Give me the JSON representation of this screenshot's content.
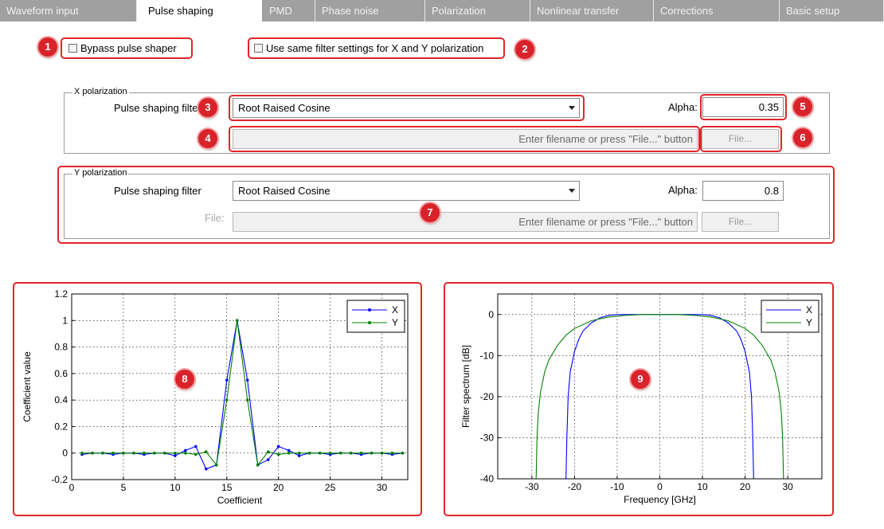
{
  "tabs": [
    {
      "label": "Waveform input",
      "active": false
    },
    {
      "label": "Pulse shaping",
      "active": true
    },
    {
      "label": "PMD",
      "active": false
    },
    {
      "label": "Phase noise",
      "active": false
    },
    {
      "label": "Polarization",
      "active": false
    },
    {
      "label": "Nonlinear transfer",
      "active": false
    },
    {
      "label": "Corrections",
      "active": false
    },
    {
      "label": "Basic setup",
      "active": false
    }
  ],
  "options": {
    "bypass_label": "Bypass pulse shaper",
    "bypass_checked": false,
    "same_filter_label": "Use same filter settings for X and Y polarization",
    "same_filter_checked": false
  },
  "x_pol": {
    "title": "X polarization",
    "filter_label": "Pulse shaping filter",
    "filter_value": "Root Raised Cosine",
    "alpha_label": "Alpha:",
    "alpha_value": "0.35",
    "file_placeholder": "Enter filename or press \"File...\" button",
    "file_button": "File..."
  },
  "y_pol": {
    "title": "Y polarization",
    "filter_label": "Pulse shaping filter",
    "filter_value": "Root Raised Cosine",
    "alpha_label": "Alpha:",
    "alpha_value": "0.8",
    "file_label": "File:",
    "file_placeholder": "Enter filename or press \"File...\" button",
    "file_button": "File..."
  },
  "callouts": [
    "1",
    "2",
    "3",
    "4",
    "5",
    "6",
    "7",
    "8",
    "9"
  ],
  "colors": {
    "accent": "#d8232a",
    "series_x": "#0000ff",
    "series_y": "#008000",
    "tab_bar": "#a0a0a0"
  },
  "chart_data": [
    {
      "type": "line",
      "xlabel": "Coefficient",
      "ylabel": "Coefficient value",
      "xlim": [
        0,
        32.5
      ],
      "ylim": [
        -0.2,
        1.2
      ],
      "xticks": [
        0,
        5,
        10,
        15,
        20,
        25,
        30
      ],
      "yticks": [
        -0.2,
        0,
        0.2,
        0.4,
        0.6,
        0.8,
        1,
        1.2
      ],
      "ytick_labels": [
        "-0.2",
        "0",
        "0.2",
        "0.4",
        "0.6",
        "0.8",
        "1",
        "1.2"
      ],
      "grid": true,
      "legend": "top-right",
      "x": [
        1,
        2,
        3,
        4,
        5,
        6,
        7,
        8,
        9,
        10,
        11,
        12,
        13,
        14,
        15,
        16,
        17,
        18,
        19,
        20,
        21,
        22,
        23,
        24,
        25,
        26,
        27,
        28,
        29,
        30,
        31,
        32
      ],
      "series": [
        {
          "name": "X",
          "color": "#0000ff",
          "marker": "dot",
          "values": [
            -0.01,
            0.0,
            0.0,
            -0.01,
            0.0,
            0.0,
            -0.01,
            0.0,
            0.0,
            -0.02,
            0.02,
            0.05,
            -0.12,
            -0.09,
            0.55,
            1.0,
            0.55,
            -0.09,
            -0.05,
            0.05,
            0.02,
            -0.02,
            0.0,
            0.0,
            -0.01,
            0.0,
            0.0,
            -0.01,
            0.0,
            0.0,
            -0.01,
            0.0
          ]
        },
        {
          "name": "Y",
          "color": "#008000",
          "marker": "dot",
          "values": [
            0.0,
            0.0,
            0.0,
            0.0,
            0.0,
            0.0,
            0.0,
            0.0,
            0.0,
            0.0,
            0.0,
            -0.01,
            0.01,
            -0.09,
            0.4,
            1.0,
            0.4,
            -0.09,
            0.01,
            -0.01,
            0.0,
            0.0,
            0.0,
            0.0,
            0.0,
            0.0,
            0.0,
            0.0,
            0.0,
            0.0,
            0.0,
            0.0
          ]
        }
      ]
    },
    {
      "type": "line",
      "xlabel": "Frequency [GHz]",
      "ylabel": "Filter spectrum [dB]",
      "xlim": [
        -38,
        38
      ],
      "ylim": [
        -40,
        5
      ],
      "xticks": [
        -30,
        -20,
        -10,
        0,
        10,
        20,
        30
      ],
      "yticks": [
        -40,
        -30,
        -20,
        -10,
        0
      ],
      "grid": true,
      "legend": "top-right",
      "series": [
        {
          "name": "X",
          "color": "#0000ff",
          "points": [
            [
              -22,
              -40
            ],
            [
              -21.8,
              -30
            ],
            [
              -21.5,
              -20
            ],
            [
              -21,
              -14
            ],
            [
              -20,
              -9
            ],
            [
              -19,
              -6
            ],
            [
              -18,
              -4
            ],
            [
              -16,
              -2
            ],
            [
              -14,
              -0.8
            ],
            [
              -12,
              -0.2
            ],
            [
              -10,
              0
            ],
            [
              0,
              0
            ],
            [
              10,
              0
            ],
            [
              12,
              -0.2
            ],
            [
              14,
              -0.8
            ],
            [
              16,
              -2
            ],
            [
              18,
              -4
            ],
            [
              19,
              -6
            ],
            [
              20,
              -9
            ],
            [
              21,
              -14
            ],
            [
              21.5,
              -20
            ],
            [
              21.8,
              -30
            ],
            [
              22,
              -40
            ]
          ]
        },
        {
          "name": "Y",
          "color": "#008000",
          "points": [
            [
              -29,
              -40
            ],
            [
              -28.8,
              -30
            ],
            [
              -28.5,
              -24
            ],
            [
              -28,
              -19
            ],
            [
              -27,
              -14
            ],
            [
              -26,
              -11
            ],
            [
              -24,
              -7.5
            ],
            [
              -22,
              -5
            ],
            [
              -20,
              -3.4
            ],
            [
              -16,
              -1.5
            ],
            [
              -12,
              -0.6
            ],
            [
              -8,
              -0.2
            ],
            [
              -4,
              0
            ],
            [
              0,
              0
            ],
            [
              4,
              0
            ],
            [
              8,
              -0.2
            ],
            [
              12,
              -0.6
            ],
            [
              16,
              -1.5
            ],
            [
              20,
              -3.4
            ],
            [
              22,
              -5
            ],
            [
              24,
              -7.5
            ],
            [
              26,
              -11
            ],
            [
              27,
              -14
            ],
            [
              28,
              -19
            ],
            [
              28.5,
              -24
            ],
            [
              28.8,
              -30
            ],
            [
              29,
              -40
            ]
          ]
        }
      ]
    }
  ]
}
